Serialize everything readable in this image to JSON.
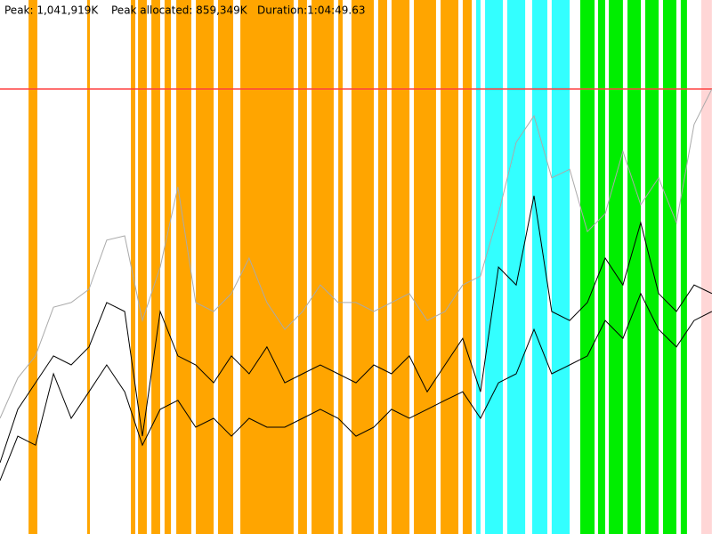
{
  "chart_data": {
    "type": "memory-timeline",
    "peak_text": "Peak: 1,041,919K",
    "peak_allocated_text": "Peak allocated: 859,349K",
    "duration_text": "Duration:1:04:49.63",
    "xlim": [
      0,
      3889.63
    ],
    "ylim": [
      0,
      1250303
    ],
    "peak_line": {
      "value": 1041919,
      "color": "#ff4040"
    },
    "bands": [
      {
        "color": "#ffa500",
        "ranges": [
          [
            156,
            204
          ],
          [
            476,
            491
          ],
          [
            715,
            739
          ],
          [
            754,
            802
          ],
          [
            827,
            875
          ],
          [
            899,
            934
          ],
          [
            963,
            1045
          ],
          [
            1070,
            1167
          ],
          [
            1191,
            1274
          ],
          [
            1313,
            1604
          ],
          [
            1629,
            1677
          ],
          [
            1702,
            1823
          ],
          [
            1848,
            1872
          ],
          [
            1920,
            2042
          ],
          [
            2066,
            2115
          ],
          [
            2139,
            2237
          ],
          [
            2261,
            2382
          ],
          [
            2407,
            2504
          ],
          [
            2528,
            2577
          ]
        ]
      },
      {
        "color": "#33ffff",
        "ranges": [
          [
            2601,
            2625
          ],
          [
            2650,
            2747
          ],
          [
            2771,
            2869
          ],
          [
            2907,
            2990
          ],
          [
            3014,
            3112
          ]
        ]
      },
      {
        "color": "#00ee00",
        "ranges": [
          [
            3170,
            3248
          ],
          [
            3267,
            3306
          ],
          [
            3326,
            3403
          ],
          [
            3428,
            3501
          ],
          [
            3525,
            3598
          ],
          [
            3622,
            3695
          ],
          [
            3719,
            3753
          ]
        ]
      },
      {
        "color": "#ffd6d6",
        "ranges": [
          [
            3831,
            3889
          ]
        ]
      }
    ],
    "x": [
      0,
      97,
      194,
      292,
      389,
      486,
      583,
      681,
      778,
      875,
      972,
      1069,
      1167,
      1264,
      1361,
      1458,
      1556,
      1653,
      1750,
      1847,
      1945,
      2042,
      2139,
      2236,
      2334,
      2431,
      2528,
      2625,
      2723,
      2820,
      2917,
      3014,
      3112,
      3209,
      3306,
      3403,
      3500,
      3598,
      3695,
      3792,
      3889
    ],
    "series": [
      {
        "color": "#aaaaaa",
        "values": [
          271000,
          365000,
          417000,
          531000,
          542000,
          573000,
          688000,
          698000,
          500000,
          625000,
          813000,
          542000,
          521000,
          563000,
          646000,
          542000,
          479000,
          521000,
          583000,
          542000,
          542000,
          521000,
          542000,
          563000,
          500000,
          521000,
          583000,
          604000,
          750000,
          917000,
          979000,
          834000,
          854000,
          708000,
          750000,
          896000,
          771000,
          834000,
          729000,
          959000,
          1042000
        ]
      },
      {
        "color": "#000000",
        "values": [
          167000,
          292000,
          354000,
          417000,
          396000,
          438000,
          542000,
          521000,
          229000,
          521000,
          417000,
          396000,
          354000,
          417000,
          375000,
          438000,
          354000,
          375000,
          396000,
          375000,
          354000,
          396000,
          375000,
          417000,
          333000,
          396000,
          458000,
          333000,
          625000,
          583000,
          792000,
          521000,
          500000,
          542000,
          646000,
          583000,
          729000,
          563000,
          521000,
          583000,
          563000
        ]
      },
      {
        "color": "#000000",
        "values": [
          125000,
          229000,
          208000,
          375000,
          271000,
          333000,
          396000,
          333000,
          208000,
          292000,
          313000,
          250000,
          271000,
          229000,
          271000,
          250000,
          250000,
          271000,
          292000,
          271000,
          229000,
          250000,
          292000,
          271000,
          292000,
          313000,
          333000,
          271000,
          354000,
          375000,
          479000,
          375000,
          396000,
          417000,
          500000,
          458000,
          563000,
          479000,
          438000,
          500000,
          521000
        ]
      }
    ]
  }
}
